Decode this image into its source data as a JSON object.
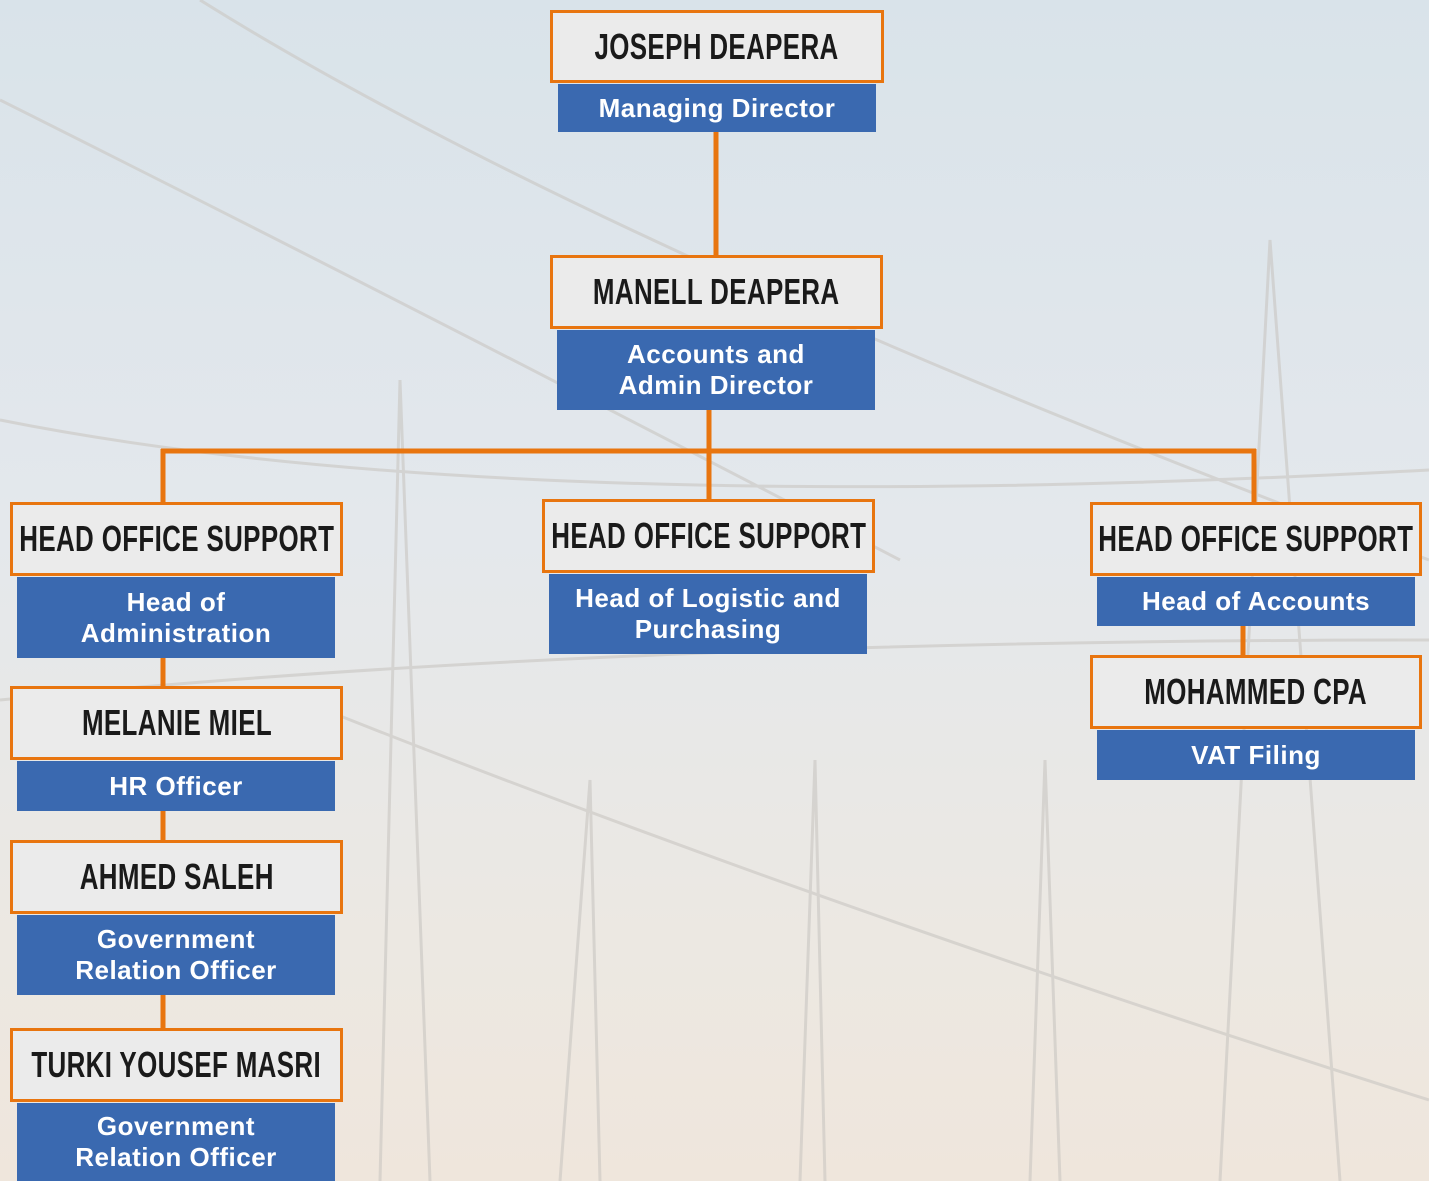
{
  "nodes": [
    {
      "name": "JOSEPH DEAPERA",
      "role": [
        "Managing Director"
      ]
    },
    {
      "name": "MANELL DEAPERA",
      "role": [
        "Accounts and",
        "Admin Director"
      ]
    },
    {
      "name": "HEAD OFFICE SUPPORT",
      "role": [
        "Head of",
        "Administration"
      ]
    },
    {
      "name": "HEAD OFFICE SUPPORT",
      "role": [
        "Head of Logistic and",
        "Purchasing"
      ]
    },
    {
      "name": "HEAD OFFICE SUPPORT",
      "role": [
        "Head of Accounts"
      ]
    },
    {
      "name": "MELANIE MIEL",
      "role": [
        "HR Officer"
      ]
    },
    {
      "name": "AHMED SALEH",
      "role": [
        "Government",
        "Relation Officer"
      ]
    },
    {
      "name": "TURKI YOUSEF MASRI",
      "role": [
        "Government",
        "Relation Officer"
      ]
    },
    {
      "name": "MOHAMMED CPA",
      "role": [
        "VAT Filing"
      ]
    }
  ]
}
